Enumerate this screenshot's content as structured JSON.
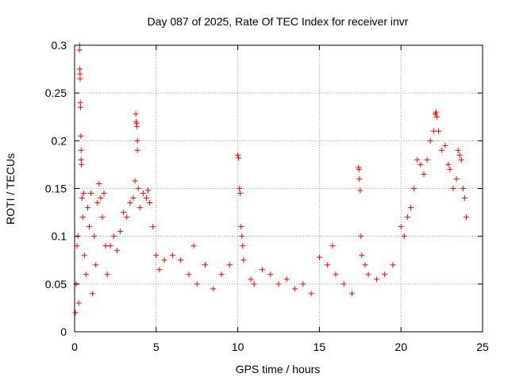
{
  "chart_data": {
    "type": "scatter",
    "title": "Day 087 of 2025, Rate Of TEC Index for receiver invr",
    "xlabel": "GPS time / hours",
    "ylabel": "ROTI / TECUs",
    "xlim": [
      0,
      25
    ],
    "ylim": [
      0,
      0.3
    ],
    "xticks": [
      0,
      5,
      10,
      15,
      20,
      25
    ],
    "xtick_labels": [
      "0",
      "5",
      "10",
      "15",
      "20",
      "25"
    ],
    "yticks": [
      0,
      0.05,
      0.1,
      0.15,
      0.2,
      0.25,
      0.3
    ],
    "ytick_labels": [
      "0",
      "0.05",
      "0.1",
      "0.15",
      "0.2",
      "0.25",
      "0.3"
    ],
    "grid": true,
    "marker": "+",
    "series": [
      {
        "name": "ROTI",
        "color": "#ff0000",
        "points": [
          [
            0.05,
            0.02
          ],
          [
            0.1,
            0.05
          ],
          [
            0.15,
            0.09
          ],
          [
            0.2,
            0.1
          ],
          [
            0.25,
            0.03
          ],
          [
            0.3,
            0.3
          ],
          [
            0.3,
            0.295
          ],
          [
            0.32,
            0.275
          ],
          [
            0.33,
            0.27
          ],
          [
            0.34,
            0.265
          ],
          [
            0.35,
            0.24
          ],
          [
            0.36,
            0.235
          ],
          [
            0.38,
            0.205
          ],
          [
            0.4,
            0.19
          ],
          [
            0.4,
            0.18
          ],
          [
            0.42,
            0.175
          ],
          [
            0.45,
            0.14
          ],
          [
            0.5,
            0.12
          ],
          [
            0.55,
            0.145
          ],
          [
            0.6,
            0.08
          ],
          [
            0.7,
            0.06
          ],
          [
            0.8,
            0.13
          ],
          [
            0.9,
            0.11
          ],
          [
            1.0,
            0.145
          ],
          [
            1.1,
            0.04
          ],
          [
            1.2,
            0.1
          ],
          [
            1.3,
            0.07
          ],
          [
            1.4,
            0.135
          ],
          [
            1.5,
            0.155
          ],
          [
            1.6,
            0.14
          ],
          [
            1.7,
            0.12
          ],
          [
            1.8,
            0.145
          ],
          [
            1.9,
            0.09
          ],
          [
            2.0,
            0.06
          ],
          [
            2.2,
            0.09
          ],
          [
            2.4,
            0.1
          ],
          [
            2.6,
            0.085
          ],
          [
            2.8,
            0.105
          ],
          [
            3.0,
            0.125
          ],
          [
            3.2,
            0.12
          ],
          [
            3.4,
            0.135
          ],
          [
            3.6,
            0.14
          ],
          [
            3.7,
            0.158
          ],
          [
            3.75,
            0.228
          ],
          [
            3.78,
            0.22
          ],
          [
            3.8,
            0.218
          ],
          [
            3.82,
            0.215
          ],
          [
            3.85,
            0.2
          ],
          [
            3.85,
            0.19
          ],
          [
            3.9,
            0.15
          ],
          [
            4.0,
            0.13
          ],
          [
            4.2,
            0.145
          ],
          [
            4.4,
            0.14
          ],
          [
            4.5,
            0.148
          ],
          [
            4.6,
            0.135
          ],
          [
            4.8,
            0.11
          ],
          [
            5.0,
            0.08
          ],
          [
            5.2,
            0.065
          ],
          [
            5.5,
            0.075
          ],
          [
            6.0,
            0.08
          ],
          [
            6.5,
            0.075
          ],
          [
            7.0,
            0.06
          ],
          [
            7.3,
            0.09
          ],
          [
            7.5,
            0.05
          ],
          [
            8.0,
            0.07
          ],
          [
            8.5,
            0.045
          ],
          [
            9.0,
            0.06
          ],
          [
            9.5,
            0.07
          ],
          [
            10.0,
            0.185
          ],
          [
            10.05,
            0.182
          ],
          [
            10.1,
            0.15
          ],
          [
            10.15,
            0.145
          ],
          [
            10.2,
            0.11
          ],
          [
            10.25,
            0.1
          ],
          [
            10.3,
            0.09
          ],
          [
            10.35,
            0.075
          ],
          [
            10.8,
            0.055
          ],
          [
            11.0,
            0.05
          ],
          [
            11.5,
            0.065
          ],
          [
            12.0,
            0.06
          ],
          [
            12.5,
            0.05
          ],
          [
            13.0,
            0.055
          ],
          [
            13.5,
            0.045
          ],
          [
            14.0,
            0.05
          ],
          [
            14.5,
            0.04
          ],
          [
            15.0,
            0.078
          ],
          [
            15.5,
            0.07
          ],
          [
            15.8,
            0.09
          ],
          [
            16.0,
            0.06
          ],
          [
            16.5,
            0.05
          ],
          [
            17.0,
            0.04
          ],
          [
            17.4,
            0.172
          ],
          [
            17.42,
            0.17
          ],
          [
            17.45,
            0.16
          ],
          [
            17.5,
            0.148
          ],
          [
            17.55,
            0.1
          ],
          [
            17.6,
            0.08
          ],
          [
            17.8,
            0.07
          ],
          [
            18.0,
            0.06
          ],
          [
            18.5,
            0.055
          ],
          [
            19.0,
            0.06
          ],
          [
            19.5,
            0.07
          ],
          [
            20.0,
            0.11
          ],
          [
            20.2,
            0.1
          ],
          [
            20.4,
            0.12
          ],
          [
            20.6,
            0.13
          ],
          [
            20.8,
            0.15
          ],
          [
            21.0,
            0.18
          ],
          [
            21.2,
            0.175
          ],
          [
            21.4,
            0.165
          ],
          [
            21.6,
            0.18
          ],
          [
            21.8,
            0.2
          ],
          [
            22.0,
            0.21
          ],
          [
            22.1,
            0.228
          ],
          [
            22.15,
            0.23
          ],
          [
            22.2,
            0.225
          ],
          [
            22.3,
            0.21
          ],
          [
            22.5,
            0.19
          ],
          [
            22.7,
            0.195
          ],
          [
            22.9,
            0.175
          ],
          [
            23.0,
            0.17
          ],
          [
            23.2,
            0.15
          ],
          [
            23.4,
            0.16
          ],
          [
            23.5,
            0.19
          ],
          [
            23.6,
            0.185
          ],
          [
            23.7,
            0.18
          ],
          [
            23.8,
            0.15
          ],
          [
            23.9,
            0.14
          ],
          [
            24.0,
            0.12
          ]
        ]
      }
    ]
  }
}
